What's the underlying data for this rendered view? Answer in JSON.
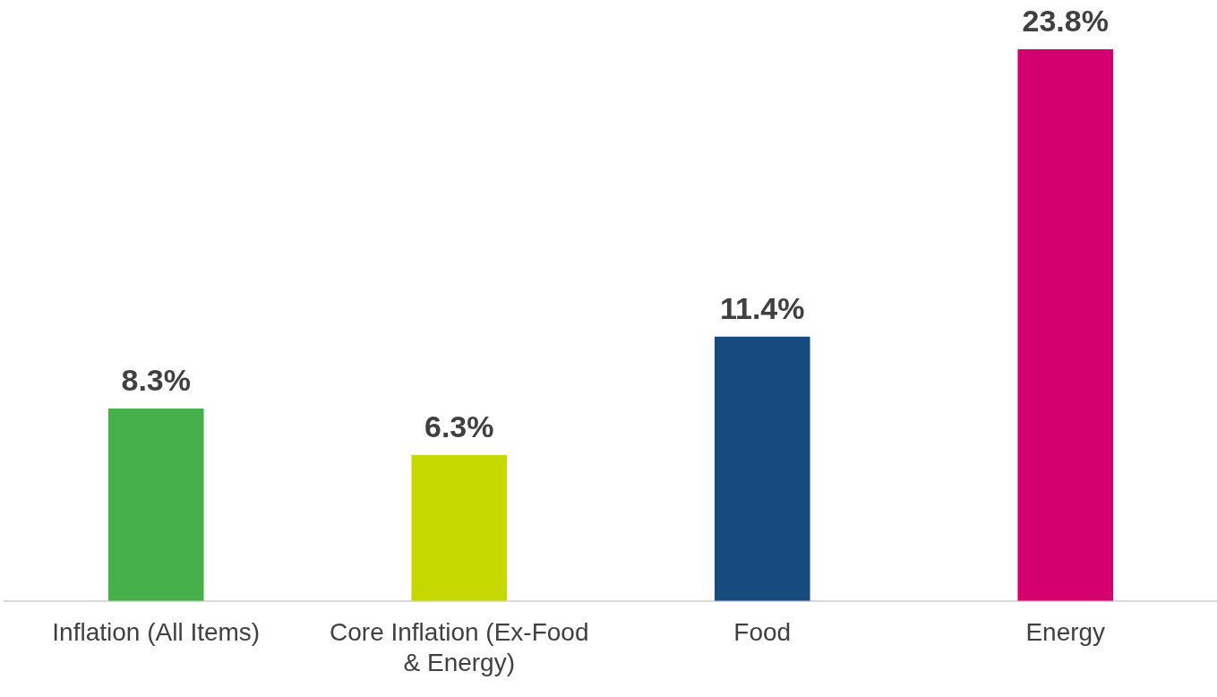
{
  "chart_data": {
    "type": "bar",
    "categories": [
      "Inflation (All Items)",
      "Core Inflation (Ex-Food & Energy)",
      "Food",
      "Energy"
    ],
    "values": [
      8.3,
      6.3,
      11.4,
      23.8
    ],
    "colors": [
      "#46b04a",
      "#c5d800",
      "#174a7e",
      "#d4006f"
    ],
    "value_labels": [
      "8.3%",
      "6.3%",
      "11.4%",
      "23.8%"
    ]
  }
}
